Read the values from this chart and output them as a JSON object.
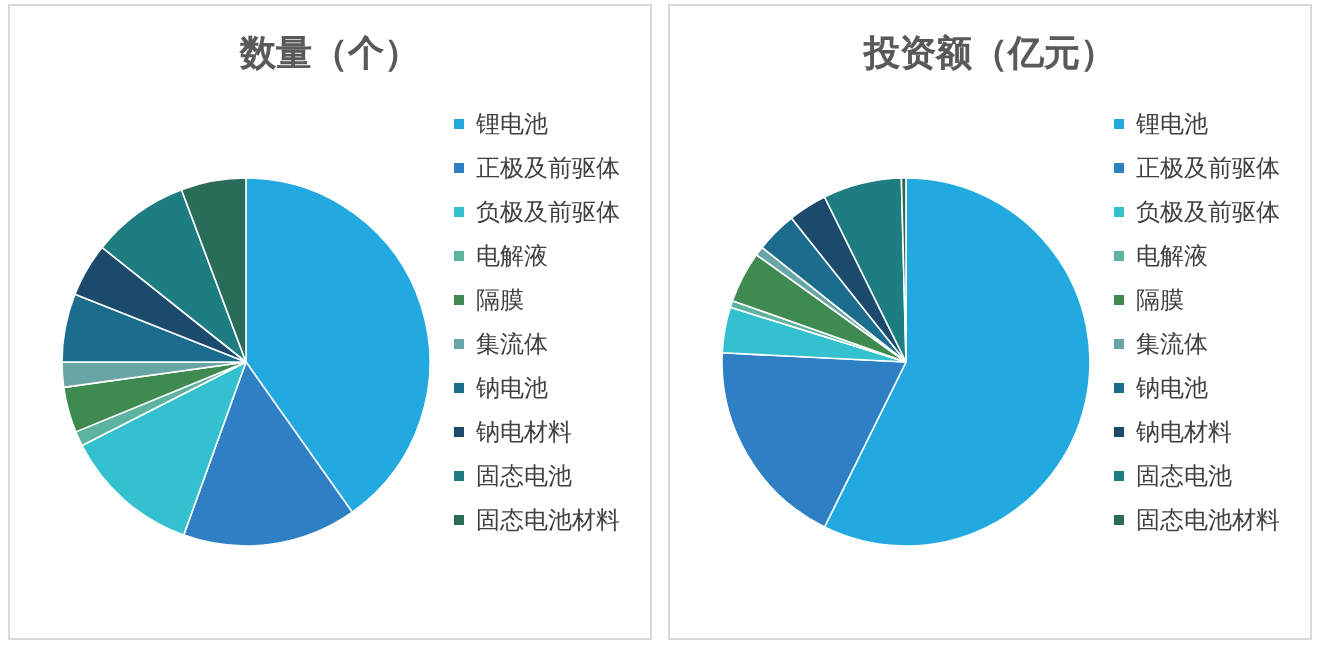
{
  "chart_data": [
    {
      "type": "pie",
      "title": "数量（个）",
      "legend": "right",
      "categories": [
        "锂电池",
        "正极及前驱体",
        "负极及前驱体",
        "电解液",
        "隔膜",
        "集流体",
        "钠电池",
        "钠电材料",
        "固态电池",
        "固态电池材料"
      ],
      "values": [
        40.2,
        15.3,
        12,
        1.3,
        4,
        2.2,
        6,
        4.7,
        8.6,
        5.7
      ],
      "colors": [
        "#22a9e0",
        "#2f7fc4",
        "#33c0cf",
        "#5eb3a0",
        "#3e8a50",
        "#6aa5a5",
        "#1c6d8d",
        "#1b4a6c",
        "#1e7d80",
        "#2a6c5a"
      ]
    },
    {
      "type": "pie",
      "title": "投资额（亿元）",
      "legend": "right",
      "categories": [
        "锂电池",
        "正极及前驱体",
        "负极及前驱体",
        "电解液",
        "隔膜",
        "集流体",
        "钠电池",
        "钠电材料",
        "固态电池",
        "固态电池材料"
      ],
      "values": [
        57.3,
        18.5,
        4,
        0.6,
        4.5,
        0.8,
        3.6,
        3.4,
        6.9,
        0.4
      ],
      "colors": [
        "#22a9e0",
        "#2f7fc4",
        "#33c0cf",
        "#5eb3a0",
        "#3e8a50",
        "#6aa5a5",
        "#1c6d8d",
        "#1b4a6c",
        "#1e7d80",
        "#2a6c5a"
      ]
    }
  ]
}
